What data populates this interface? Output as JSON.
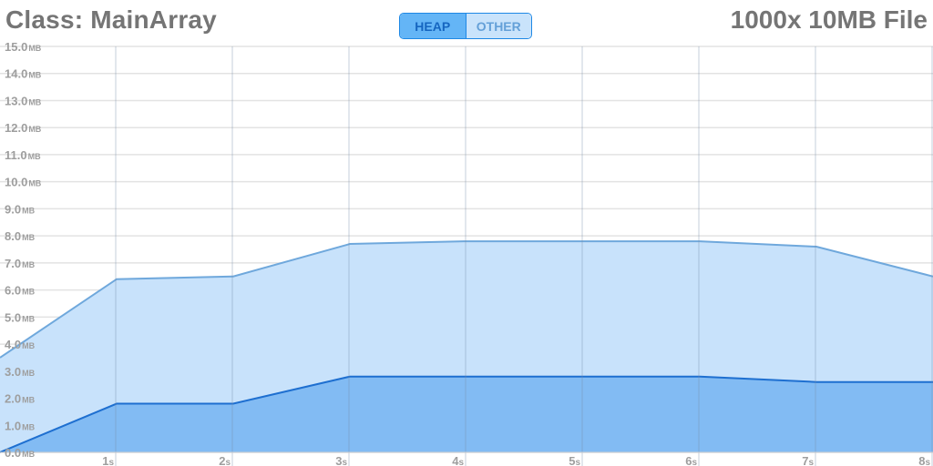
{
  "header": {
    "class_title": "Class: MainArray",
    "file_title": "1000x 10MB File"
  },
  "toggle": {
    "options": [
      {
        "label": "HEAP",
        "active": true
      },
      {
        "label": "OTHER",
        "active": false
      }
    ]
  },
  "chart_data": {
    "type": "area",
    "title": "",
    "xlabel": "",
    "ylabel": "",
    "xlim": [
      0,
      8
    ],
    "ylim": [
      0,
      15
    ],
    "grid": true,
    "y_unit": "MB",
    "x_unit": "s",
    "y_ticks": [
      "0.0",
      "1.0",
      "2.0",
      "3.0",
      "4.0",
      "5.0",
      "6.0",
      "7.0",
      "8.0",
      "9.0",
      "10.0",
      "11.0",
      "12.0",
      "13.0",
      "14.0",
      "15.0"
    ],
    "x_ticks": [
      "1",
      "2",
      "3",
      "4",
      "5",
      "6",
      "7",
      "8"
    ],
    "series": [
      {
        "x": [
          0,
          1,
          2,
          3,
          4,
          5,
          6,
          7,
          8
        ],
        "values": [
          3.5,
          6.4,
          6.5,
          7.7,
          7.8,
          7.8,
          7.8,
          7.6,
          6.5
        ],
        "fill": "#c8e2fb",
        "stroke": "#6fa8dc"
      },
      {
        "x": [
          0,
          1,
          2,
          3,
          4,
          5,
          6,
          7,
          8
        ],
        "values": [
          0.0,
          1.8,
          1.8,
          2.8,
          2.8,
          2.8,
          2.8,
          2.6,
          2.6
        ],
        "fill": "#82bbf3",
        "stroke": "#1e6fd0"
      }
    ]
  }
}
